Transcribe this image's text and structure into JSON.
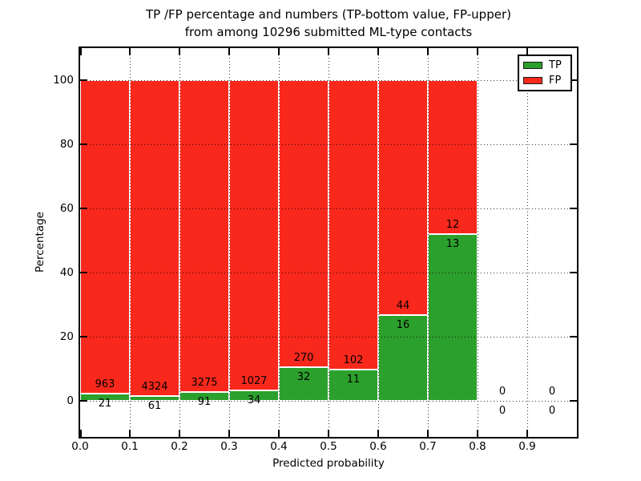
{
  "figure": {
    "title_line1": "TP /FP percentage and numbers (TP-bottom value, FP-upper)",
    "title_line2": "from among 10296 submitted ML-type contacts"
  },
  "chart_data": {
    "type": "bar",
    "stacked": true,
    "normalization": "each bin drawn as percent of bin total, TP% + FP% = 100; annotations show raw counts (TP bottom, FP upper)",
    "title": "TP /FP percentage and numbers (TP-bottom value, FP-upper) from among 10296 submitted ML-type contacts",
    "xlabel": "Predicted probability",
    "ylabel": "Percentage",
    "bin_width": 0.1,
    "bin_starts": [
      0.0,
      0.1,
      0.2,
      0.3,
      0.4,
      0.5,
      0.6,
      0.7,
      0.8,
      0.9
    ],
    "series": [
      {
        "name": "TP",
        "color": "#2ca02c",
        "counts": [
          21,
          61,
          91,
          34,
          32,
          11,
          16,
          13,
          0,
          0
        ]
      },
      {
        "name": "FP",
        "color": "#f9281c",
        "counts": [
          963,
          4324,
          3275,
          1027,
          270,
          102,
          44,
          12,
          0,
          0
        ]
      }
    ],
    "tp_percent_by_bin": [
      2.13,
      1.39,
      2.7,
      3.2,
      10.6,
      9.73,
      26.67,
      52.0,
      0,
      0
    ],
    "total_contacts": 10296,
    "x_tick_labels": [
      "0.0",
      "0.1",
      "0.2",
      "0.3",
      "0.4",
      "0.5",
      "0.6",
      "0.7",
      "0.8",
      "0.9"
    ],
    "y_tick_labels": [
      "0",
      "20",
      "40",
      "60",
      "80",
      "100"
    ],
    "y_tick_values": [
      0,
      20,
      40,
      60,
      80,
      100
    ],
    "xlim": [
      0.0,
      1.0
    ],
    "ylim": [
      -11.25,
      110
    ],
    "grid": "dotted, drawn above bars",
    "legend_position": "upper right"
  }
}
